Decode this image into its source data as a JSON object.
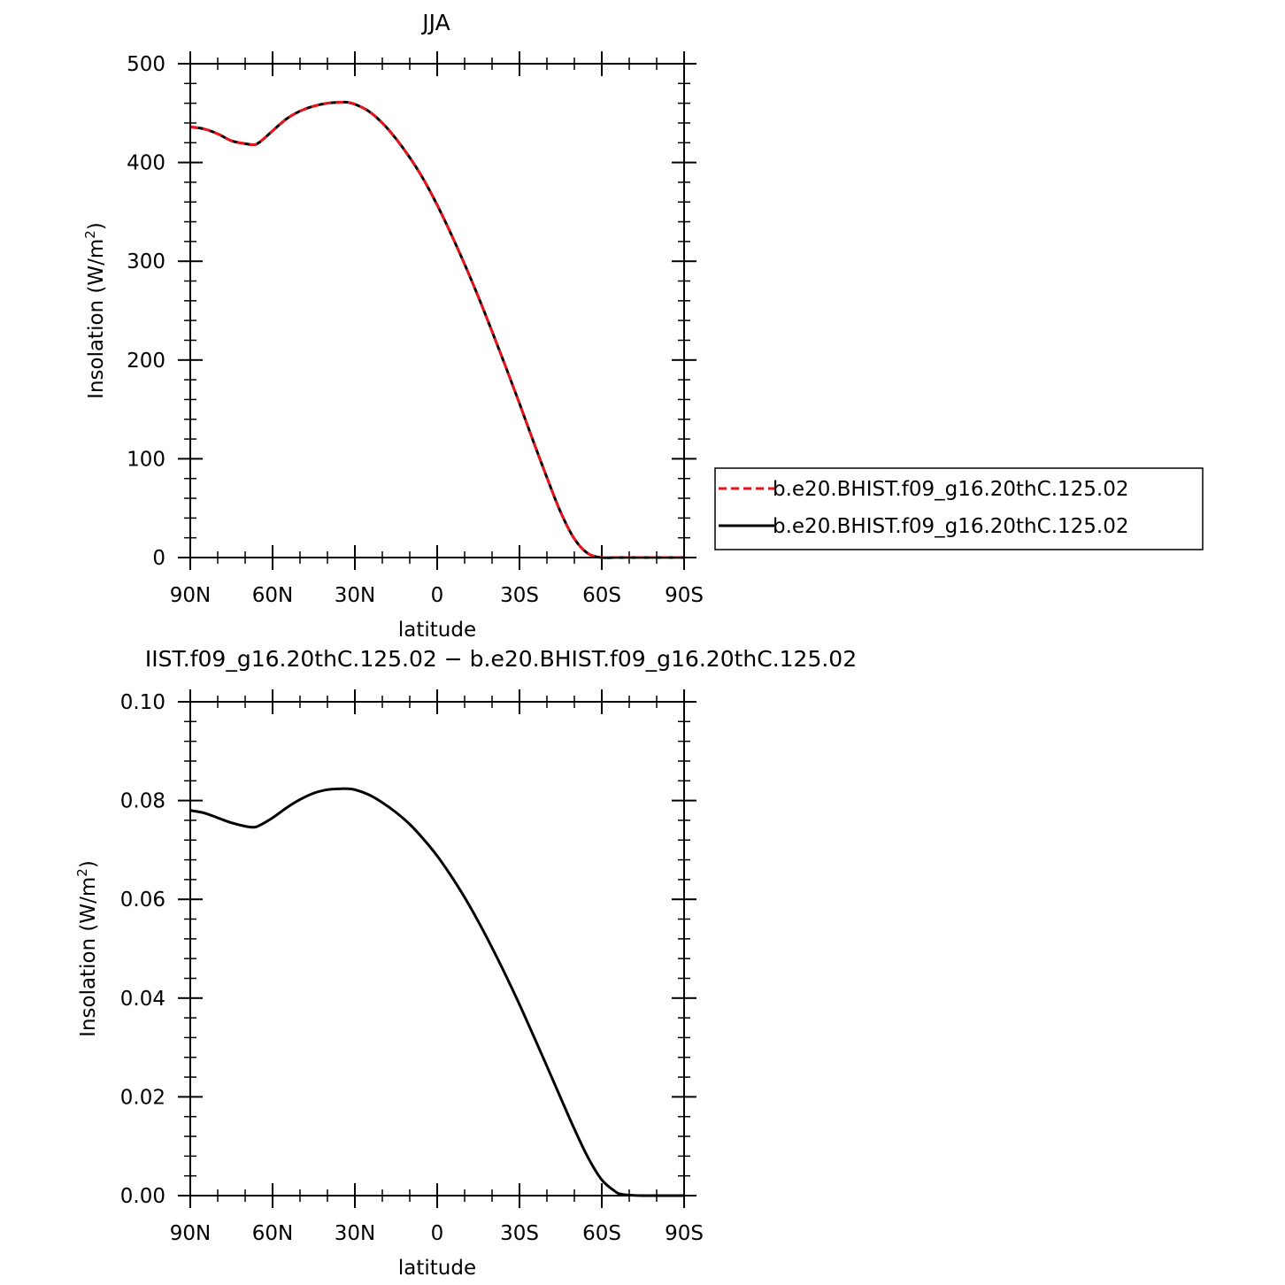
{
  "chart_data": [
    {
      "type": "line",
      "title": "JJA",
      "xlabel": "latitude",
      "ylabel": "Insolation",
      "ylabel_unit": "(W/m",
      "ylabel_sup": "2",
      "ylabel_close": ")",
      "ylim": [
        0,
        500
      ],
      "xlim": [
        90,
        -90
      ],
      "x_ticks": [
        90,
        60,
        30,
        0,
        -30,
        -60,
        -90
      ],
      "x_tick_labels": [
        "90N",
        "60N",
        "30N",
        "0",
        "30S",
        "60S",
        "90S"
      ],
      "y_ticks": [
        0,
        100,
        200,
        300,
        400,
        500
      ],
      "y_tick_labels": [
        "0",
        "100",
        "200",
        "300",
        "400",
        "500"
      ],
      "grid": false,
      "legend_position": "right",
      "x": [
        90,
        85,
        80,
        75,
        70,
        67,
        65,
        60,
        55,
        50,
        45,
        40,
        35,
        33,
        30,
        25,
        20,
        15,
        10,
        5,
        0,
        -5,
        -10,
        -15,
        -20,
        -25,
        -30,
        -35,
        -40,
        -45,
        -50,
        -55,
        -60,
        -65,
        -67,
        -70,
        -75,
        -80,
        -85,
        -90
      ],
      "series": [
        {
          "name": "b.e20.BHIST.f09_g16.20thC.125.02",
          "color": "#e8141c",
          "dash": "dashed",
          "values": [
            436,
            434,
            429,
            422,
            419,
            418,
            420,
            432,
            444,
            452,
            457,
            460,
            461,
            461,
            459,
            452,
            440,
            424,
            405,
            383,
            357,
            328,
            297,
            264,
            229,
            193,
            156,
            118,
            81,
            46,
            19,
            4,
            0,
            0,
            0,
            0,
            0,
            0,
            0,
            0
          ]
        },
        {
          "name": "b.e20.BHIST.f09_g16.20thC.125.02",
          "color": "#000000",
          "dash": "solid",
          "values": [
            436,
            434,
            429,
            422,
            419,
            418,
            420,
            432,
            444,
            452,
            457,
            460,
            461,
            461,
            459,
            452,
            440,
            424,
            405,
            383,
            357,
            328,
            297,
            264,
            229,
            193,
            156,
            118,
            81,
            46,
            19,
            4,
            0,
            0,
            0,
            0,
            0,
            0,
            0,
            0
          ]
        }
      ]
    },
    {
      "type": "line",
      "title": "IIST.f09_g16.20thC.125.02 − b.e20.BHIST.f09_g16.20thC.125.02",
      "xlabel": "latitude",
      "ylabel": "Insolation",
      "ylabel_unit": "(W/m",
      "ylabel_sup": "2",
      "ylabel_close": ")",
      "ylim": [
        0,
        0.1
      ],
      "xlim": [
        90,
        -90
      ],
      "x_ticks": [
        90,
        60,
        30,
        0,
        -30,
        -60,
        -90
      ],
      "x_tick_labels": [
        "90N",
        "60N",
        "30N",
        "0",
        "30S",
        "60S",
        "90S"
      ],
      "y_ticks": [
        0,
        0.02,
        0.04,
        0.06,
        0.08,
        0.1
      ],
      "y_tick_labels": [
        "0.00",
        "0.02",
        "0.04",
        "0.06",
        "0.08",
        "0.10"
      ],
      "grid": false,
      "x": [
        90,
        85,
        80,
        75,
        70,
        67,
        65,
        60,
        55,
        50,
        45,
        40,
        35,
        33,
        30,
        25,
        20,
        15,
        10,
        5,
        0,
        -5,
        -10,
        -15,
        -20,
        -25,
        -30,
        -35,
        -40,
        -45,
        -50,
        -55,
        -60,
        -65,
        -67,
        -70,
        -75,
        -80,
        -85,
        -90
      ],
      "series": [
        {
          "color": "#000000",
          "dash": "solid",
          "values": [
            0.078,
            0.0775,
            0.0765,
            0.0755,
            0.0748,
            0.0746,
            0.0749,
            0.0765,
            0.0785,
            0.0802,
            0.0815,
            0.0822,
            0.0824,
            0.0824,
            0.0822,
            0.0812,
            0.0796,
            0.0776,
            0.0752,
            0.0722,
            0.0688,
            0.0648,
            0.0604,
            0.0555,
            0.0502,
            0.0446,
            0.0387,
            0.0325,
            0.0262,
            0.0198,
            0.0135,
            0.0077,
            0.0032,
            0.0008,
            0.0003,
            0.0001,
            0,
            0,
            0,
            0
          ]
        }
      ]
    }
  ]
}
